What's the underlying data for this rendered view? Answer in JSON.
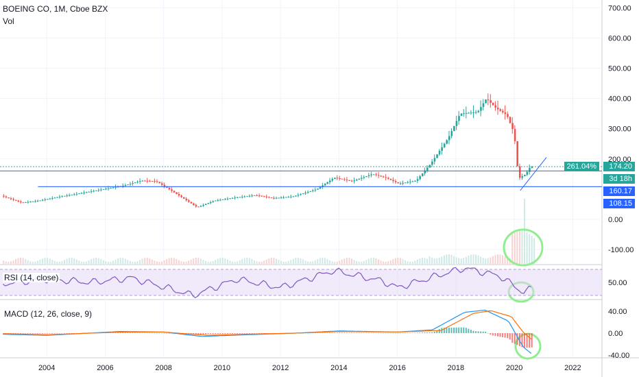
{
  "header": {
    "symbol_line": "BOEING CO, 1M, Cboe BZX",
    "vol_label": "Vol"
  },
  "rsi": {
    "label": "RSI (14, close)",
    "axis_label": "50.00",
    "color": "#7e57c2"
  },
  "macd": {
    "label": "MACD (12, 26, close, 9)",
    "axis_labels": [
      "40.00",
      "0.00",
      "-40.00"
    ],
    "macd_color": "#2196f3",
    "signal_color": "#ff6d00"
  },
  "price_tags": {
    "change_pct": "261.04%",
    "last_price": "174.20",
    "countdown": "3d 18h",
    "level_1": "160.17",
    "level_2": "108.15"
  },
  "colors": {
    "up": "#26a69a",
    "down": "#ef5350",
    "line": "#2962ff",
    "annotation": "#90ee90",
    "rsi_band": "#e1d5f5"
  },
  "chart_data": {
    "type": "candlestick",
    "title": "BOEING CO, 1M, Cboe BZX",
    "y_axis_ticks": [
      "700.00",
      "600.00",
      "500.00",
      "400.00",
      "300.00",
      "200.00",
      "0.00",
      "-100.00"
    ],
    "x_axis_ticks": [
      "2004",
      "2006",
      "2008",
      "2010",
      "2012",
      "2014",
      "2016",
      "2018",
      "2020",
      "2022"
    ],
    "ylim": [
      -140,
      720
    ],
    "xlim": [
      2002.4,
      2023.0
    ],
    "price_path": [
      [
        2002.5,
        78
      ],
      [
        2003.2,
        55
      ],
      [
        2003.8,
        62
      ],
      [
        2004.5,
        75
      ],
      [
        2005.3,
        88
      ],
      [
        2006.0,
        100
      ],
      [
        2006.7,
        112
      ],
      [
        2007.3,
        128
      ],
      [
        2007.8,
        126
      ],
      [
        2008.4,
        90
      ],
      [
        2009.2,
        40
      ],
      [
        2009.8,
        62
      ],
      [
        2010.5,
        72
      ],
      [
        2011.2,
        80
      ],
      [
        2011.8,
        70
      ],
      [
        2012.5,
        76
      ],
      [
        2013.3,
        100
      ],
      [
        2013.9,
        138
      ],
      [
        2014.5,
        126
      ],
      [
        2015.2,
        150
      ],
      [
        2015.7,
        136
      ],
      [
        2016.1,
        118
      ],
      [
        2016.7,
        128
      ],
      [
        2017.2,
        185
      ],
      [
        2017.8,
        270
      ],
      [
        2018.2,
        350
      ],
      [
        2018.8,
        355
      ],
      [
        2019.1,
        400
      ],
      [
        2019.4,
        370
      ],
      [
        2019.8,
        345
      ],
      [
        2020.05,
        285
      ],
      [
        2020.2,
        135
      ],
      [
        2020.45,
        150
      ],
      [
        2020.6,
        174.2
      ]
    ],
    "volume_spike_x": 2020.3,
    "horizontal_levels": [
      174.2,
      160.17,
      108.15
    ],
    "rsi_path": [
      [
        2002.5,
        48
      ],
      [
        2004.0,
        55
      ],
      [
        2005.5,
        50
      ],
      [
        2006.9,
        57
      ],
      [
        2009.0,
        30
      ],
      [
        2010.5,
        55
      ],
      [
        2012.0,
        42
      ],
      [
        2013.8,
        68
      ],
      [
        2015.5,
        52
      ],
      [
        2016.0,
        42
      ],
      [
        2017.5,
        62
      ],
      [
        2018.3,
        72
      ],
      [
        2019.5,
        60
      ],
      [
        2020.3,
        35
      ],
      [
        2020.6,
        40
      ]
    ],
    "macd_ylim": [
      -45,
      45
    ],
    "macd_path": [
      [
        2002.5,
        -2
      ],
      [
        2004.0,
        -4
      ],
      [
        2006.5,
        3
      ],
      [
        2008.0,
        2
      ],
      [
        2009.3,
        -6
      ],
      [
        2010.8,
        -3
      ],
      [
        2012.5,
        0
      ],
      [
        2014.0,
        4
      ],
      [
        2016.0,
        2
      ],
      [
        2017.2,
        6
      ],
      [
        2018.3,
        38
      ],
      [
        2019.0,
        42
      ],
      [
        2019.8,
        22
      ],
      [
        2020.3,
        -25
      ],
      [
        2020.6,
        -38
      ]
    ],
    "signal_path": [
      [
        2002.5,
        -1
      ],
      [
        2004.0,
        -3
      ],
      [
        2006.5,
        2
      ],
      [
        2008.0,
        2
      ],
      [
        2009.5,
        -4
      ],
      [
        2010.8,
        -2
      ],
      [
        2012.5,
        0
      ],
      [
        2014.0,
        3
      ],
      [
        2016.0,
        2
      ],
      [
        2017.5,
        5
      ],
      [
        2018.6,
        36
      ],
      [
        2019.2,
        41
      ],
      [
        2019.9,
        30
      ],
      [
        2020.3,
        2
      ],
      [
        2020.6,
        -12
      ]
    ]
  }
}
